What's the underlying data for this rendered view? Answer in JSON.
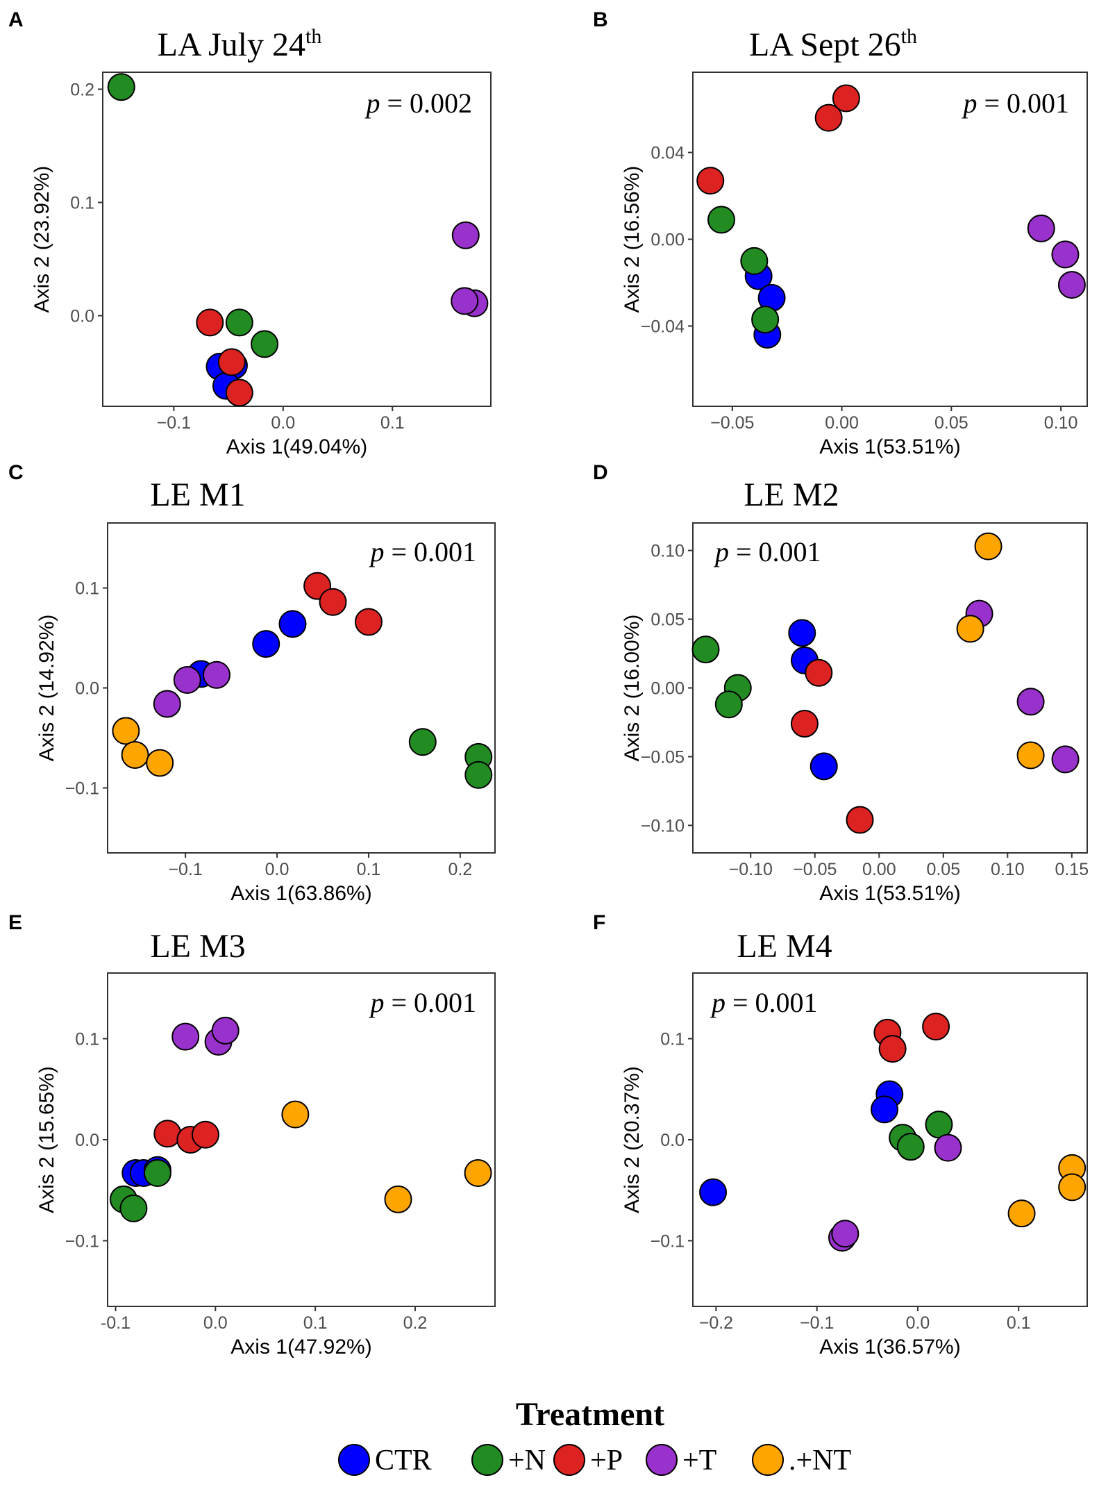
{
  "colors": {
    "CTR": "#0000ff",
    "+N": "#228b22",
    "+P": "#dd2222",
    "+T": "#9932cc",
    "+NT": "#ffa500"
  },
  "legend": {
    "title": "Treatment",
    "items": [
      {
        "key": "CTR",
        "label": "CTR"
      },
      {
        "key": "+N",
        "label": "+N"
      },
      {
        "key": "+P",
        "label": "+P"
      },
      {
        "key": "+T",
        "label": "+T"
      },
      {
        "key": "+NT",
        "label": ".+NT"
      }
    ]
  },
  "chart_data": [
    {
      "type": "scatter",
      "letter": "A",
      "title": "LA July 24",
      "title_sup": "th",
      "p_label": "p",
      "p_value": "= 0.002",
      "xlabel": "Axis 1(49.04%)",
      "ylabel": "Axis 2 (23.92%)",
      "xlim": [
        -0.165,
        0.19
      ],
      "ylim": [
        -0.08,
        0.215
      ],
      "xticks": [
        -0.1,
        0.0,
        0.1
      ],
      "xtick_labels": [
        "−0.1",
        "0.0",
        "0.1"
      ],
      "yticks": [
        0.0,
        0.1,
        0.2
      ],
      "ytick_labels": [
        "0.0",
        "0.1",
        "0.2"
      ],
      "points": [
        {
          "g": "+N",
          "x": -0.148,
          "y": 0.202
        },
        {
          "g": "+T",
          "x": 0.167,
          "y": 0.071
        },
        {
          "g": "+T",
          "x": 0.175,
          "y": 0.011
        },
        {
          "g": "+T",
          "x": 0.166,
          "y": 0.013
        },
        {
          "g": "+P",
          "x": -0.067,
          "y": -0.006
        },
        {
          "g": "+N",
          "x": -0.04,
          "y": -0.006
        },
        {
          "g": "+N",
          "x": -0.017,
          "y": -0.025
        },
        {
          "g": "CTR",
          "x": -0.058,
          "y": -0.045
        },
        {
          "g": "CTR",
          "x": -0.045,
          "y": -0.044
        },
        {
          "g": "CTR",
          "x": -0.052,
          "y": -0.062
        },
        {
          "g": "+P",
          "x": -0.047,
          "y": -0.041
        },
        {
          "g": "+P",
          "x": -0.04,
          "y": -0.068
        }
      ]
    },
    {
      "type": "scatter",
      "letter": "B",
      "title": "LA Sept 26",
      "title_sup": "th",
      "p_label": "p",
      "p_value": "= 0.001",
      "xlabel": "Axis 1(53.51%)",
      "ylabel": "Axis 2 (16.56%)",
      "xlim": [
        -0.068,
        0.112
      ],
      "ylim": [
        -0.077,
        0.077
      ],
      "xticks": [
        -0.05,
        0.0,
        0.05,
        0.1
      ],
      "xtick_labels": [
        "−0.05",
        "0.00",
        "0.05",
        "0.10"
      ],
      "yticks": [
        -0.04,
        0.0,
        0.04
      ],
      "ytick_labels": [
        "−0.04",
        "0.00",
        "0.04"
      ],
      "points": [
        {
          "g": "+P",
          "x": 0.002,
          "y": 0.065
        },
        {
          "g": "+P",
          "x": -0.006,
          "y": 0.056
        },
        {
          "g": "+P",
          "x": -0.06,
          "y": 0.027
        },
        {
          "g": "+N",
          "x": -0.055,
          "y": 0.009
        },
        {
          "g": "+T",
          "x": 0.091,
          "y": 0.005
        },
        {
          "g": "+T",
          "x": 0.102,
          "y": -0.007
        },
        {
          "g": "+T",
          "x": 0.105,
          "y": -0.021
        },
        {
          "g": "CTR",
          "x": -0.038,
          "y": -0.017
        },
        {
          "g": "+N",
          "x": -0.04,
          "y": -0.01
        },
        {
          "g": "CTR",
          "x": -0.032,
          "y": -0.027
        },
        {
          "g": "CTR",
          "x": -0.034,
          "y": -0.044
        },
        {
          "g": "+N",
          "x": -0.035,
          "y": -0.037
        }
      ]
    },
    {
      "type": "scatter",
      "letter": "C",
      "title": "LE M1",
      "title_sup": "",
      "p_label": "p",
      "p_value": "= 0.001",
      "xlabel": "Axis 1(63.86%)",
      "ylabel": "Axis 2 (14.92%)",
      "xlim": [
        -0.185,
        0.238
      ],
      "ylim": [
        -0.165,
        0.165
      ],
      "xticks": [
        -0.1,
        0.0,
        0.1,
        0.2
      ],
      "xtick_labels": [
        "−0.1",
        "0.0",
        "0.1",
        "0.2"
      ],
      "yticks": [
        -0.1,
        0.0,
        0.1
      ],
      "ytick_labels": [
        "−0.1",
        "0.0",
        "0.1"
      ],
      "points": [
        {
          "g": "+P",
          "x": 0.044,
          "y": 0.102
        },
        {
          "g": "+P",
          "x": 0.061,
          "y": 0.086
        },
        {
          "g": "+P",
          "x": 0.1,
          "y": 0.066
        },
        {
          "g": "CTR",
          "x": 0.017,
          "y": 0.064
        },
        {
          "g": "CTR",
          "x": -0.012,
          "y": 0.044
        },
        {
          "g": "CTR",
          "x": -0.083,
          "y": 0.014
        },
        {
          "g": "+T",
          "x": -0.066,
          "y": 0.013
        },
        {
          "g": "+T",
          "x": -0.098,
          "y": 0.008
        },
        {
          "g": "+T",
          "x": -0.12,
          "y": -0.016
        },
        {
          "g": "+NT",
          "x": -0.165,
          "y": -0.043
        },
        {
          "g": "+NT",
          "x": -0.155,
          "y": -0.067
        },
        {
          "g": "+NT",
          "x": -0.128,
          "y": -0.075
        },
        {
          "g": "+N",
          "x": 0.159,
          "y": -0.054
        },
        {
          "g": "+N",
          "x": 0.22,
          "y": -0.069
        },
        {
          "g": "+N",
          "x": 0.22,
          "y": -0.087
        }
      ]
    },
    {
      "type": "scatter",
      "letter": "D",
      "title": "LE M2",
      "title_sup": "",
      "p_label": "p",
      "p_value": "= 0.001",
      "xlabel": "Axis 1(53.51%)",
      "ylabel": "Axis 2 (16.00%)",
      "xlim": [
        -0.145,
        0.162
      ],
      "ylim": [
        -0.12,
        0.12
      ],
      "xticks": [
        -0.1,
        -0.05,
        0.0,
        0.05,
        0.1,
        0.15
      ],
      "xtick_labels": [
        "−0.10",
        "−0.05",
        "0.00",
        "0.05",
        "0.10",
        "0.15"
      ],
      "yticks": [
        -0.1,
        -0.05,
        0.0,
        0.05,
        0.1
      ],
      "ytick_labels": [
        "−0.10",
        "−0.05",
        "0.00",
        "0.05",
        "0.10"
      ],
      "points": [
        {
          "g": "+NT",
          "x": 0.085,
          "y": 0.103
        },
        {
          "g": "+T",
          "x": 0.078,
          "y": 0.054
        },
        {
          "g": "+NT",
          "x": 0.071,
          "y": 0.043
        },
        {
          "g": "+N",
          "x": -0.135,
          "y": 0.028
        },
        {
          "g": "+N",
          "x": -0.11,
          "y": 0.0
        },
        {
          "g": "+N",
          "x": -0.117,
          "y": -0.012
        },
        {
          "g": "CTR",
          "x": -0.06,
          "y": 0.04
        },
        {
          "g": "CTR",
          "x": -0.058,
          "y": 0.02
        },
        {
          "g": "+P",
          "x": -0.047,
          "y": 0.011
        },
        {
          "g": "+P",
          "x": -0.058,
          "y": -0.026
        },
        {
          "g": "CTR",
          "x": -0.043,
          "y": -0.057
        },
        {
          "g": "+P",
          "x": -0.015,
          "y": -0.096
        },
        {
          "g": "+T",
          "x": 0.118,
          "y": -0.01
        },
        {
          "g": "+NT",
          "x": 0.118,
          "y": -0.049
        },
        {
          "g": "+T",
          "x": 0.145,
          "y": -0.052
        }
      ]
    },
    {
      "type": "scatter",
      "letter": "E",
      "title": "LE M3",
      "title_sup": "",
      "p_label": "p",
      "p_value": "= 0.001",
      "xlabel": "Axis 1(47.92%)",
      "ylabel": "Axis 2 (15.65%)",
      "xlim": [
        -0.108,
        0.28
      ],
      "ylim": [
        -0.165,
        0.165
      ],
      "xticks": [
        -0.1,
        0.0,
        0.1,
        0.2
      ],
      "xtick_labels": [
        "-0.1",
        "0.0",
        "0.1",
        "0.2"
      ],
      "yticks": [
        -0.1,
        0.0,
        0.1
      ],
      "ytick_labels": [
        "−0.1",
        "0.0",
        "0.1"
      ],
      "points": [
        {
          "g": "+T",
          "x": -0.03,
          "y": 0.102
        },
        {
          "g": "+T",
          "x": 0.003,
          "y": 0.097
        },
        {
          "g": "+T",
          "x": 0.01,
          "y": 0.108
        },
        {
          "g": "+NT",
          "x": 0.08,
          "y": 0.025
        },
        {
          "g": "+P",
          "x": -0.048,
          "y": 0.006
        },
        {
          "g": "+P",
          "x": -0.025,
          "y": 0.0
        },
        {
          "g": "+P",
          "x": -0.01,
          "y": 0.005
        },
        {
          "g": "CTR",
          "x": -0.08,
          "y": -0.033
        },
        {
          "g": "CTR",
          "x": -0.072,
          "y": -0.033
        },
        {
          "g": "CTR",
          "x": -0.058,
          "y": -0.03
        },
        {
          "g": "+N",
          "x": -0.058,
          "y": -0.033
        },
        {
          "g": "+N",
          "x": -0.092,
          "y": -0.059
        },
        {
          "g": "+N",
          "x": -0.082,
          "y": -0.068
        },
        {
          "g": "+NT",
          "x": 0.183,
          "y": -0.059
        },
        {
          "g": "+NT",
          "x": 0.263,
          "y": -0.033
        }
      ]
    },
    {
      "type": "scatter",
      "letter": "F",
      "title": "LE M4",
      "title_sup": "",
      "p_label": "p",
      "p_value": "= 0.001",
      "xlabel": "Axis 1(36.57%)",
      "ylabel": "Axis 2 (20.37%)",
      "xlim": [
        -0.223,
        0.168
      ],
      "ylim": [
        -0.165,
        0.165
      ],
      "xticks": [
        -0.2,
        -0.1,
        0.0,
        0.1
      ],
      "xtick_labels": [
        "−0.2",
        "−0.1",
        "0.0",
        "0.1"
      ],
      "yticks": [
        -0.1,
        0.0,
        0.1
      ],
      "ytick_labels": [
        "−0.1",
        "0.0",
        "0.1"
      ],
      "points": [
        {
          "g": "+P",
          "x": -0.03,
          "y": 0.106
        },
        {
          "g": "+P",
          "x": 0.018,
          "y": 0.112
        },
        {
          "g": "+P",
          "x": -0.025,
          "y": 0.09
        },
        {
          "g": "CTR",
          "x": -0.028,
          "y": 0.045
        },
        {
          "g": "CTR",
          "x": -0.033,
          "y": 0.03
        },
        {
          "g": "+N",
          "x": 0.021,
          "y": 0.015
        },
        {
          "g": "+N",
          "x": -0.015,
          "y": 0.002
        },
        {
          "g": "+N",
          "x": -0.007,
          "y": -0.007
        },
        {
          "g": "+T",
          "x": 0.03,
          "y": -0.008
        },
        {
          "g": "CTR",
          "x": -0.203,
          "y": -0.052
        },
        {
          "g": "+T",
          "x": -0.075,
          "y": -0.097
        },
        {
          "g": "+T",
          "x": -0.072,
          "y": -0.093
        },
        {
          "g": "+NT",
          "x": 0.153,
          "y": -0.028
        },
        {
          "g": "+NT",
          "x": 0.153,
          "y": -0.047
        },
        {
          "g": "+NT",
          "x": 0.103,
          "y": -0.073
        }
      ]
    }
  ]
}
